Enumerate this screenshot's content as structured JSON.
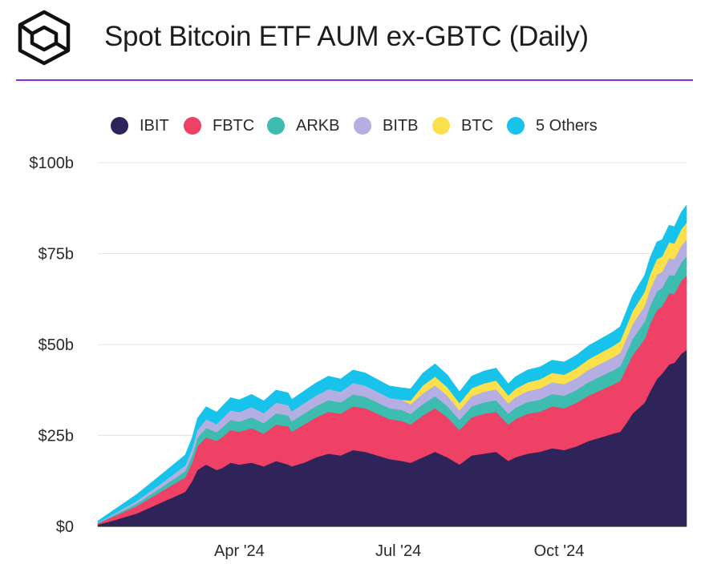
{
  "header": {
    "title": "Spot Bitcoin ETF AUM ex-GBTC (Daily)",
    "logo_icon": "cube-logo-icon",
    "rule_color": "#8a2be2"
  },
  "chart_data": {
    "type": "area",
    "stacked": true,
    "title": "Spot Bitcoin ETF AUM ex-GBTC (Daily)",
    "xlabel": "",
    "ylabel": "",
    "ylim": [
      0,
      100
    ],
    "y_unit": "billion USD",
    "grid": true,
    "legend_position": "top",
    "y_ticks": [
      {
        "value": 0,
        "label": "$0"
      },
      {
        "value": 25,
        "label": "$25b"
      },
      {
        "value": 50,
        "label": "$50b"
      },
      {
        "value": 75,
        "label": "$75b"
      },
      {
        "value": 100,
        "label": "$100b"
      }
    ],
    "x_ticks": [
      {
        "value": "2024-04-01",
        "label": "Apr '24"
      },
      {
        "value": "2024-07-01",
        "label": "Jul '24"
      },
      {
        "value": "2024-10-01",
        "label": "Oct '24"
      }
    ],
    "x": [
      "2024-01-11",
      "2024-01-19",
      "2024-01-26",
      "2024-02-02",
      "2024-02-09",
      "2024-02-16",
      "2024-02-23",
      "2024-03-01",
      "2024-03-05",
      "2024-03-08",
      "2024-03-13",
      "2024-03-19",
      "2024-03-22",
      "2024-03-27",
      "2024-04-01",
      "2024-04-08",
      "2024-04-15",
      "2024-04-22",
      "2024-04-29",
      "2024-05-01",
      "2024-05-08",
      "2024-05-15",
      "2024-05-22",
      "2024-05-29",
      "2024-06-05",
      "2024-06-12",
      "2024-06-19",
      "2024-06-26",
      "2024-07-03",
      "2024-07-08",
      "2024-07-15",
      "2024-07-22",
      "2024-07-29",
      "2024-08-05",
      "2024-08-12",
      "2024-08-19",
      "2024-08-26",
      "2024-09-02",
      "2024-09-06",
      "2024-09-13",
      "2024-09-20",
      "2024-09-27",
      "2024-10-04",
      "2024-10-11",
      "2024-10-18",
      "2024-10-25",
      "2024-11-01",
      "2024-11-05",
      "2024-11-08",
      "2024-11-12",
      "2024-11-19",
      "2024-11-22",
      "2024-11-26",
      "2024-11-29",
      "2024-12-03",
      "2024-12-06",
      "2024-12-10",
      "2024-12-13"
    ],
    "series": [
      {
        "name": "IBIT",
        "color": "#2e2459",
        "values": [
          0.5,
          1.5,
          2.5,
          3.5,
          5.0,
          6.5,
          8.0,
          9.5,
          12.5,
          15.5,
          17.0,
          15.5,
          16.0,
          17.5,
          17.0,
          17.5,
          16.5,
          18.0,
          17.0,
          16.5,
          17.5,
          19.0,
          20.0,
          19.5,
          21.0,
          20.5,
          19.5,
          18.5,
          18.0,
          17.5,
          19.0,
          20.5,
          19.0,
          17.0,
          19.5,
          20.0,
          20.5,
          18.0,
          19.0,
          20.0,
          20.5,
          21.5,
          21.0,
          22.0,
          23.5,
          24.5,
          25.5,
          26.0,
          28.0,
          31.0,
          34.0,
          37.0,
          40.5,
          42.0,
          44.5,
          45.0,
          47.5,
          48.5
        ]
      },
      {
        "name": "FBTC",
        "color": "#ef4066",
        "values": [
          0.3,
          1.0,
          1.5,
          2.0,
          2.5,
          3.0,
          3.5,
          4.0,
          5.0,
          6.5,
          7.5,
          8.0,
          8.5,
          9.0,
          9.0,
          9.5,
          9.0,
          10.0,
          10.5,
          9.5,
          10.5,
          11.0,
          11.5,
          11.5,
          12.0,
          12.0,
          11.5,
          11.0,
          11.0,
          10.5,
          11.5,
          12.0,
          11.0,
          9.5,
          10.5,
          11.0,
          11.0,
          10.0,
          10.5,
          11.0,
          11.0,
          11.5,
          11.5,
          12.0,
          12.5,
          13.0,
          13.5,
          14.0,
          15.0,
          16.0,
          17.5,
          18.5,
          19.0,
          18.5,
          19.5,
          19.0,
          20.0,
          20.5
        ]
      },
      {
        "name": "ARKB",
        "color": "#3dbcb0",
        "values": [
          0.1,
          0.3,
          0.5,
          0.7,
          0.9,
          1.1,
          1.4,
          1.7,
          2.0,
          2.3,
          2.6,
          2.4,
          2.6,
          2.8,
          2.8,
          3.0,
          2.9,
          3.1,
          3.0,
          2.9,
          3.0,
          3.1,
          3.2,
          3.1,
          3.3,
          3.2,
          3.1,
          3.0,
          3.0,
          2.9,
          3.1,
          3.3,
          3.1,
          2.8,
          3.0,
          3.1,
          3.2,
          3.0,
          3.1,
          3.2,
          3.3,
          3.4,
          3.4,
          3.5,
          3.7,
          3.8,
          3.9,
          4.0,
          4.2,
          4.5,
          4.8,
          5.0,
          5.1,
          5.0,
          5.1,
          5.0,
          5.1,
          5.2
        ]
      },
      {
        "name": "BITB",
        "color": "#b5aee3",
        "values": [
          0.1,
          0.3,
          0.5,
          0.7,
          0.9,
          1.1,
          1.3,
          1.5,
          1.8,
          2.1,
          2.3,
          2.2,
          2.4,
          2.6,
          2.6,
          2.8,
          2.7,
          2.9,
          2.8,
          2.7,
          2.8,
          2.9,
          3.0,
          2.9,
          3.1,
          3.0,
          2.9,
          2.8,
          2.8,
          2.7,
          2.9,
          3.0,
          2.9,
          2.6,
          2.8,
          2.9,
          3.0,
          2.8,
          2.9,
          3.0,
          3.1,
          3.2,
          3.2,
          3.3,
          3.4,
          3.5,
          3.6,
          3.7,
          3.8,
          4.0,
          4.3,
          4.5,
          4.6,
          4.5,
          4.6,
          4.5,
          4.6,
          4.7
        ]
      },
      {
        "name": "BTC",
        "color": "#fbe04c",
        "values": [
          0.0,
          0.0,
          0.0,
          0.0,
          0.0,
          0.0,
          0.0,
          0.0,
          0.0,
          0.0,
          0.0,
          0.0,
          0.0,
          0.0,
          0.0,
          0.0,
          0.0,
          0.0,
          0.0,
          0.0,
          0.0,
          0.0,
          0.0,
          0.0,
          0.0,
          0.0,
          0.0,
          0.0,
          0.0,
          1.0,
          2.2,
          2.4,
          2.3,
          2.0,
          2.2,
          2.3,
          2.4,
          2.2,
          2.3,
          2.4,
          2.5,
          2.6,
          2.6,
          2.7,
          2.9,
          3.0,
          3.1,
          3.2,
          3.4,
          3.6,
          3.9,
          4.1,
          4.3,
          4.2,
          4.4,
          4.3,
          4.5,
          4.6
        ]
      },
      {
        "name": "5 Others",
        "color": "#17c3ea",
        "values": [
          0.5,
          1.0,
          1.4,
          1.8,
          2.1,
          2.4,
          2.7,
          2.9,
          3.1,
          3.3,
          3.5,
          3.3,
          3.4,
          3.5,
          3.4,
          3.5,
          3.4,
          3.5,
          3.4,
          3.3,
          3.4,
          3.5,
          3.6,
          3.5,
          3.6,
          3.5,
          3.4,
          3.3,
          3.3,
          3.2,
          3.4,
          3.5,
          3.4,
          3.1,
          3.3,
          3.4,
          3.4,
          3.2,
          3.3,
          3.4,
          3.4,
          3.5,
          3.5,
          3.6,
          3.7,
          3.8,
          3.9,
          4.0,
          4.1,
          4.3,
          4.5,
          4.6,
          4.7,
          4.6,
          4.7,
          4.6,
          4.7,
          4.8
        ]
      }
    ]
  }
}
